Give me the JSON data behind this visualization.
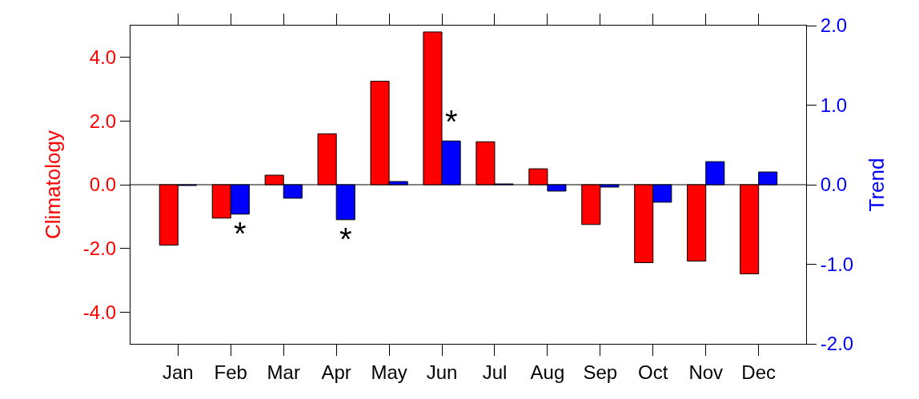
{
  "chart_data": {
    "type": "bar",
    "categories": [
      "Jan",
      "Feb",
      "Mar",
      "Apr",
      "May",
      "Jun",
      "Jul",
      "Aug",
      "Sep",
      "Oct",
      "Nov",
      "Dec"
    ],
    "ylabel": "Climatology",
    "y2label": "Trend",
    "series": [
      {
        "name": null,
        "color": "#ff0000",
        "values": [
          -1.9,
          -1.05,
          0.3,
          1.6,
          3.25,
          4.8,
          1.35,
          0.5,
          -1.25,
          -2.45,
          -2.4,
          -2.8
        ]
      },
      {
        "name": null,
        "color": "#0000ff",
        "axis": "y2",
        "values": [
          -0.01,
          -0.37,
          -0.17,
          -0.44,
          0.04,
          0.55,
          0.01,
          -0.08,
          -0.03,
          -0.22,
          0.29,
          0.16
        ]
      }
    ],
    "ylim": [
      -5,
      5
    ],
    "yticks": [
      {
        "value": -4,
        "label": "-4.0"
      },
      {
        "value": -2,
        "label": "-2.0"
      },
      {
        "value": 0,
        "label": "0.0"
      },
      {
        "value": 2,
        "label": "2.0"
      },
      {
        "value": 4,
        "label": "4.0"
      }
    ],
    "y2lim": [
      -2,
      2
    ],
    "y2ticks": [
      {
        "value": -2,
        "label": "-2.0"
      },
      {
        "value": -1,
        "label": "-1.0"
      },
      {
        "value": 0,
        "label": "0.0"
      },
      {
        "value": 1,
        "label": "1.0"
      },
      {
        "value": 2,
        "label": "2.0"
      }
    ],
    "annotations": [
      {
        "text": "*",
        "x": "Feb",
        "y": -0.37
      },
      {
        "text": "*",
        "x": "Apr",
        "y": -0.44
      },
      {
        "text": "*",
        "x": "Jun",
        "y": 0.55
      }
    ],
    "ref_lines": [
      {
        "axis": "y",
        "value": 0,
        "color": "#000000"
      }
    ],
    "grid": false
  }
}
